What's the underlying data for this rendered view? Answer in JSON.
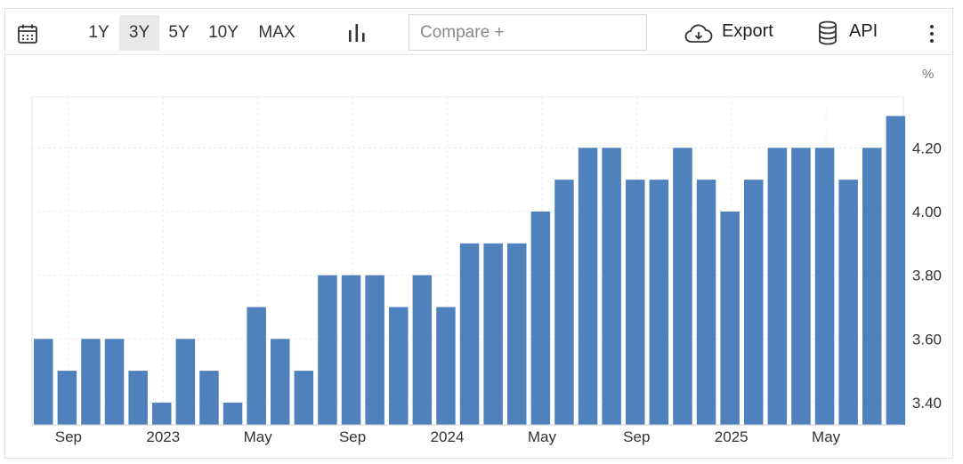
{
  "toolbar": {
    "calendar_icon": "calendar-icon",
    "ranges": [
      "1Y",
      "3Y",
      "5Y",
      "10Y",
      "MAX"
    ],
    "active_range": "3Y",
    "chart_type_icon": "bar-chart-icon",
    "compare_placeholder": "Compare +",
    "export_label": "Export",
    "export_icon": "cloud-download-icon",
    "api_label": "API",
    "api_icon": "database-icon",
    "more_icon": "more-vertical-icon"
  },
  "chart_data": {
    "type": "bar",
    "unit": "%",
    "values": [
      3.6,
      3.5,
      3.6,
      3.6,
      3.5,
      3.4,
      3.6,
      3.5,
      3.4,
      3.7,
      3.6,
      3.5,
      3.8,
      3.8,
      3.8,
      3.7,
      3.8,
      3.7,
      3.9,
      3.9,
      3.9,
      4.0,
      4.1,
      4.2,
      4.2,
      4.1,
      4.1,
      4.2,
      4.1,
      4.0,
      4.1,
      4.2,
      4.2,
      4.2,
      4.1,
      4.2,
      4.3
    ],
    "x_tick_labels": [
      {
        "index": 1,
        "label": "Sep"
      },
      {
        "index": 5,
        "label": "2023"
      },
      {
        "index": 9,
        "label": "May"
      },
      {
        "index": 13,
        "label": "Sep"
      },
      {
        "index": 17,
        "label": "2024"
      },
      {
        "index": 21,
        "label": "May"
      },
      {
        "index": 25,
        "label": "Sep"
      },
      {
        "index": 29,
        "label": "2025"
      },
      {
        "index": 33,
        "label": "May"
      }
    ],
    "y_ticks": [
      "3.40",
      "3.60",
      "3.80",
      "4.00",
      "4.20"
    ],
    "ylim": [
      3.33,
      4.36
    ],
    "bar_color": "#4f81bd",
    "grid": true,
    "y_axis_position": "right"
  }
}
